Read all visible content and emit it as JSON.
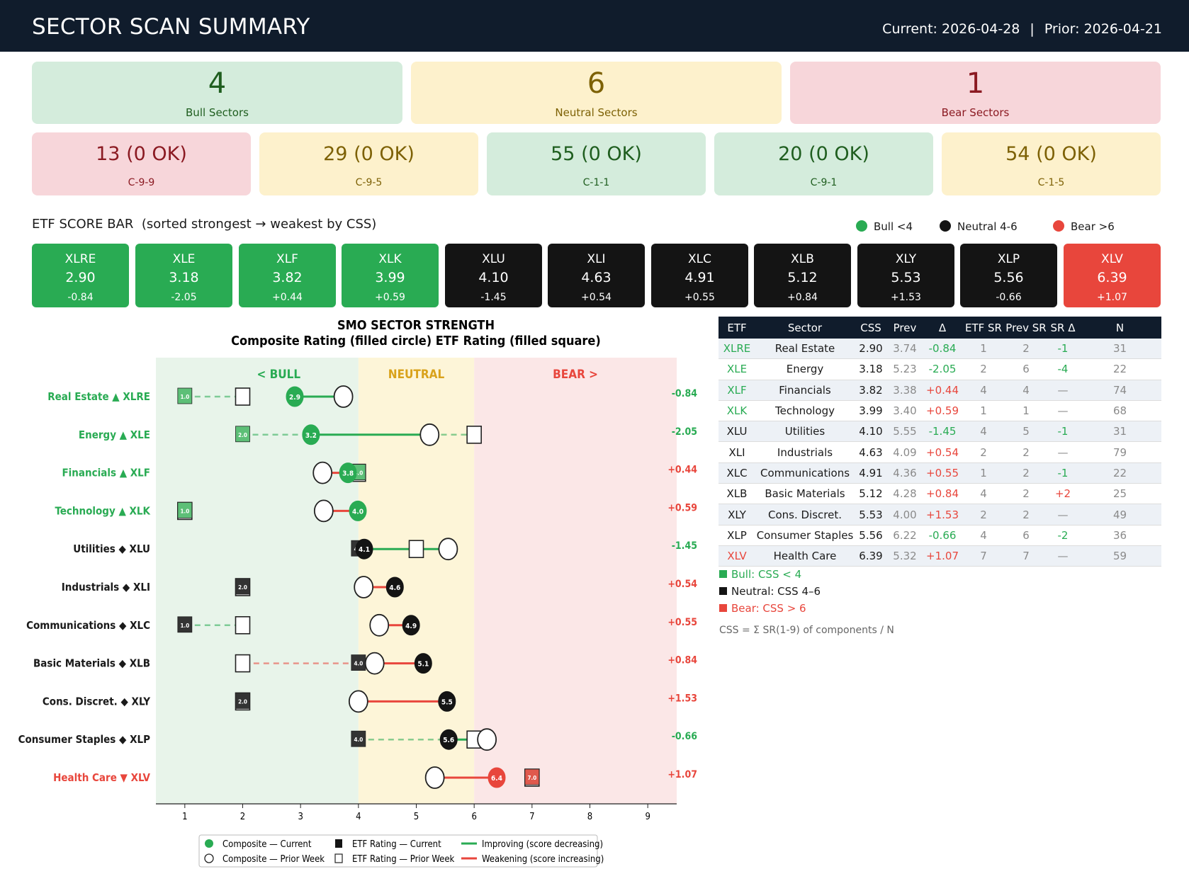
{
  "header": {
    "title": "SECTOR SCAN SUMMARY",
    "current": "Current: 2026-04-28",
    "separator": "|",
    "prior": "Prior: 2026-04-21"
  },
  "summary": {
    "bull": {
      "count": "4",
      "label": "Bull Sectors"
    },
    "neutral": {
      "count": "6",
      "label": "Neutral Sectors"
    },
    "bear": {
      "count": "1",
      "label": "Bear Sectors"
    }
  },
  "scans": [
    {
      "value": "13 (0 OK)",
      "label": "C-9-9",
      "tone": "bear"
    },
    {
      "value": "29 (0 OK)",
      "label": "C-9-5",
      "tone": "neu"
    },
    {
      "value": "55 (0 OK)",
      "label": "C-1-1",
      "tone": "bull"
    },
    {
      "value": "20 (0 OK)",
      "label": "C-9-1",
      "tone": "bull"
    },
    {
      "value": "54 (0 OK)",
      "label": "C-1-5",
      "tone": "neu"
    }
  ],
  "score_bar": {
    "title": "ETF SCORE BAR  (sorted strongest → weakest by CSS)",
    "legend": {
      "bull": "Bull <4",
      "neutral": "Neutral 4-6",
      "bear": "Bear >6"
    },
    "items": [
      {
        "ticker": "XLRE",
        "score": "2.90",
        "delta": "-0.84",
        "tone": "bull"
      },
      {
        "ticker": "XLE",
        "score": "3.18",
        "delta": "-2.05",
        "tone": "bull"
      },
      {
        "ticker": "XLF",
        "score": "3.82",
        "delta": "+0.44",
        "tone": "bull"
      },
      {
        "ticker": "XLK",
        "score": "3.99",
        "delta": "+0.59",
        "tone": "bull"
      },
      {
        "ticker": "XLU",
        "score": "4.10",
        "delta": "-1.45",
        "tone": "neu"
      },
      {
        "ticker": "XLI",
        "score": "4.63",
        "delta": "+0.54",
        "tone": "neu"
      },
      {
        "ticker": "XLC",
        "score": "4.91",
        "delta": "+0.55",
        "tone": "neu"
      },
      {
        "ticker": "XLB",
        "score": "5.12",
        "delta": "+0.84",
        "tone": "neu"
      },
      {
        "ticker": "XLY",
        "score": "5.53",
        "delta": "+1.53",
        "tone": "neu"
      },
      {
        "ticker": "XLP",
        "score": "5.56",
        "delta": "-0.66",
        "tone": "neu"
      },
      {
        "ticker": "XLV",
        "score": "6.39",
        "delta": "+1.07",
        "tone": "bear"
      }
    ]
  },
  "chart_data": {
    "type": "scatter",
    "title": "SMO SECTOR STRENGTH",
    "subtitle": "Composite Rating (filled circle)   ETF Rating (filled square)",
    "zones": {
      "bull": "< BULL",
      "neutral": "NEUTRAL",
      "bear": "BEAR >"
    },
    "xlim": [
      0.5,
      9.5
    ],
    "xticks": [
      1,
      2,
      3,
      4,
      5,
      6,
      7,
      8,
      9
    ],
    "rows": [
      {
        "label": "Real Estate ▲ XLRE",
        "tone": "bull",
        "comp_cur": 2.9,
        "comp_prior": 3.74,
        "etf_cur": 1.0,
        "etf_prior": 2.0,
        "cur_lbl": "2.9",
        "etf_lbl": "1.0",
        "delta": "-0.84"
      },
      {
        "label": "Energy ▲ XLE",
        "tone": "bull",
        "comp_cur": 3.18,
        "comp_prior": 5.23,
        "etf_cur": 2.0,
        "etf_prior": 6.0,
        "cur_lbl": "3.2",
        "etf_lbl": "2.0",
        "delta": "-2.05"
      },
      {
        "label": "Financials ▲ XLF",
        "tone": "bull",
        "comp_cur": 3.82,
        "comp_prior": 3.38,
        "etf_cur": 4.0,
        "etf_prior": 4.0,
        "cur_lbl": "3.8",
        "etf_lbl": "4.0",
        "delta": "+0.44"
      },
      {
        "label": "Technology ▲ XLK",
        "tone": "bull",
        "comp_cur": 3.99,
        "comp_prior": 3.4,
        "etf_cur": 1.0,
        "etf_prior": 1.0,
        "cur_lbl": "4.0",
        "etf_lbl": "1.0",
        "delta": "+0.59"
      },
      {
        "label": "Utilities ◆ XLU",
        "tone": "neu",
        "comp_cur": 4.1,
        "comp_prior": 5.55,
        "etf_cur": 4.0,
        "etf_prior": 5.0,
        "cur_lbl": "4.1",
        "etf_lbl": "4.0",
        "delta": "-1.45"
      },
      {
        "label": "Industrials ◆ XLI",
        "tone": "neu",
        "comp_cur": 4.63,
        "comp_prior": 4.09,
        "etf_cur": 2.0,
        "etf_prior": 2.0,
        "cur_lbl": "4.6",
        "etf_lbl": "2.0",
        "delta": "+0.54"
      },
      {
        "label": "Communications ◆ XLC",
        "tone": "neu",
        "comp_cur": 4.91,
        "comp_prior": 4.36,
        "etf_cur": 1.0,
        "etf_prior": 2.0,
        "cur_lbl": "4.9",
        "etf_lbl": "1.0",
        "delta": "+0.55"
      },
      {
        "label": "Basic Materials ◆ XLB",
        "tone": "neu",
        "comp_cur": 5.12,
        "comp_prior": 4.28,
        "etf_cur": 4.0,
        "etf_prior": 2.0,
        "cur_lbl": "5.1",
        "etf_lbl": "4.0",
        "delta": "+0.84"
      },
      {
        "label": "Cons. Discret. ◆ XLY",
        "tone": "neu",
        "comp_cur": 5.53,
        "comp_prior": 4.0,
        "etf_cur": 2.0,
        "etf_prior": 2.0,
        "cur_lbl": "5.5",
        "etf_lbl": "2.0",
        "delta": "+1.53"
      },
      {
        "label": "Consumer Staples ◆ XLP",
        "tone": "neu",
        "comp_cur": 5.56,
        "comp_prior": 6.22,
        "etf_cur": 4.0,
        "etf_prior": 6.0,
        "cur_lbl": "5.6",
        "etf_lbl": "4.0",
        "delta": "-0.66"
      },
      {
        "label": "Health Care ▼ XLV",
        "tone": "bear",
        "comp_cur": 6.39,
        "comp_prior": 5.32,
        "etf_cur": 7.0,
        "etf_prior": 7.0,
        "cur_lbl": "6.4",
        "etf_lbl": "7.0",
        "delta": "+1.07"
      }
    ],
    "legend": [
      "Composite — Current",
      "Composite — Prior Week",
      "ETF Rating — Current",
      "ETF Rating — Prior Week",
      "Improving (score decreasing)",
      "Weakening (score increasing)"
    ]
  },
  "table": {
    "headers": [
      "ETF",
      "Sector",
      "CSS",
      "Prev",
      "Δ",
      "ETF SR",
      "Prev SR",
      "SR Δ",
      "N"
    ],
    "rows": [
      {
        "etf": "XLRE",
        "tone": "g",
        "sector": "Real Estate",
        "css": "2.90",
        "prev": "3.74",
        "delta": "-0.84",
        "dtone": "g",
        "sr": "1",
        "prev_sr": "2",
        "sr_delta": "-1",
        "srtone": "g",
        "n": "31"
      },
      {
        "etf": "XLE",
        "tone": "g",
        "sector": "Energy",
        "css": "3.18",
        "prev": "5.23",
        "delta": "-2.05",
        "dtone": "g",
        "sr": "2",
        "prev_sr": "6",
        "sr_delta": "-4",
        "srtone": "g",
        "n": "22"
      },
      {
        "etf": "XLF",
        "tone": "g",
        "sector": "Financials",
        "css": "3.82",
        "prev": "3.38",
        "delta": "+0.44",
        "dtone": "r",
        "sr": "4",
        "prev_sr": "4",
        "sr_delta": "—",
        "srtone": "gr",
        "n": "74"
      },
      {
        "etf": "XLK",
        "tone": "g",
        "sector": "Technology",
        "css": "3.99",
        "prev": "3.40",
        "delta": "+0.59",
        "dtone": "r",
        "sr": "1",
        "prev_sr": "1",
        "sr_delta": "—",
        "srtone": "gr",
        "n": "68"
      },
      {
        "etf": "XLU",
        "tone": "k",
        "sector": "Utilities",
        "css": "4.10",
        "prev": "5.55",
        "delta": "-1.45",
        "dtone": "g",
        "sr": "4",
        "prev_sr": "5",
        "sr_delta": "-1",
        "srtone": "g",
        "n": "31"
      },
      {
        "etf": "XLI",
        "tone": "k",
        "sector": "Industrials",
        "css": "4.63",
        "prev": "4.09",
        "delta": "+0.54",
        "dtone": "r",
        "sr": "2",
        "prev_sr": "2",
        "sr_delta": "—",
        "srtone": "gr",
        "n": "79"
      },
      {
        "etf": "XLC",
        "tone": "k",
        "sector": "Communications",
        "css": "4.91",
        "prev": "4.36",
        "delta": "+0.55",
        "dtone": "r",
        "sr": "1",
        "prev_sr": "2",
        "sr_delta": "-1",
        "srtone": "g",
        "n": "22"
      },
      {
        "etf": "XLB",
        "tone": "k",
        "sector": "Basic Materials",
        "css": "5.12",
        "prev": "4.28",
        "delta": "+0.84",
        "dtone": "r",
        "sr": "4",
        "prev_sr": "2",
        "sr_delta": "+2",
        "srtone": "r",
        "n": "25"
      },
      {
        "etf": "XLY",
        "tone": "k",
        "sector": "Cons. Discret.",
        "css": "5.53",
        "prev": "4.00",
        "delta": "+1.53",
        "dtone": "r",
        "sr": "2",
        "prev_sr": "2",
        "sr_delta": "—",
        "srtone": "gr",
        "n": "49"
      },
      {
        "etf": "XLP",
        "tone": "k",
        "sector": "Consumer Staples",
        "css": "5.56",
        "prev": "6.22",
        "delta": "-0.66",
        "dtone": "g",
        "sr": "4",
        "prev_sr": "6",
        "sr_delta": "-2",
        "srtone": "g",
        "n": "36"
      },
      {
        "etf": "XLV",
        "tone": "r",
        "sector": "Health Care",
        "css": "6.39",
        "prev": "5.32",
        "delta": "+1.07",
        "dtone": "r",
        "sr": "7",
        "prev_sr": "7",
        "sr_delta": "—",
        "srtone": "gr",
        "n": "59"
      }
    ]
  },
  "key": {
    "bull": "Bull: CSS < 4",
    "neutral": "Neutral: CSS 4–6",
    "bear": "Bear: CSS > 6"
  },
  "footnote": "CSS = Σ SR(1-9) of components / N",
  "colors": {
    "bull": "#29ab53",
    "neutral": "#141414",
    "bear": "#e8463c",
    "header": "#101c2c"
  }
}
